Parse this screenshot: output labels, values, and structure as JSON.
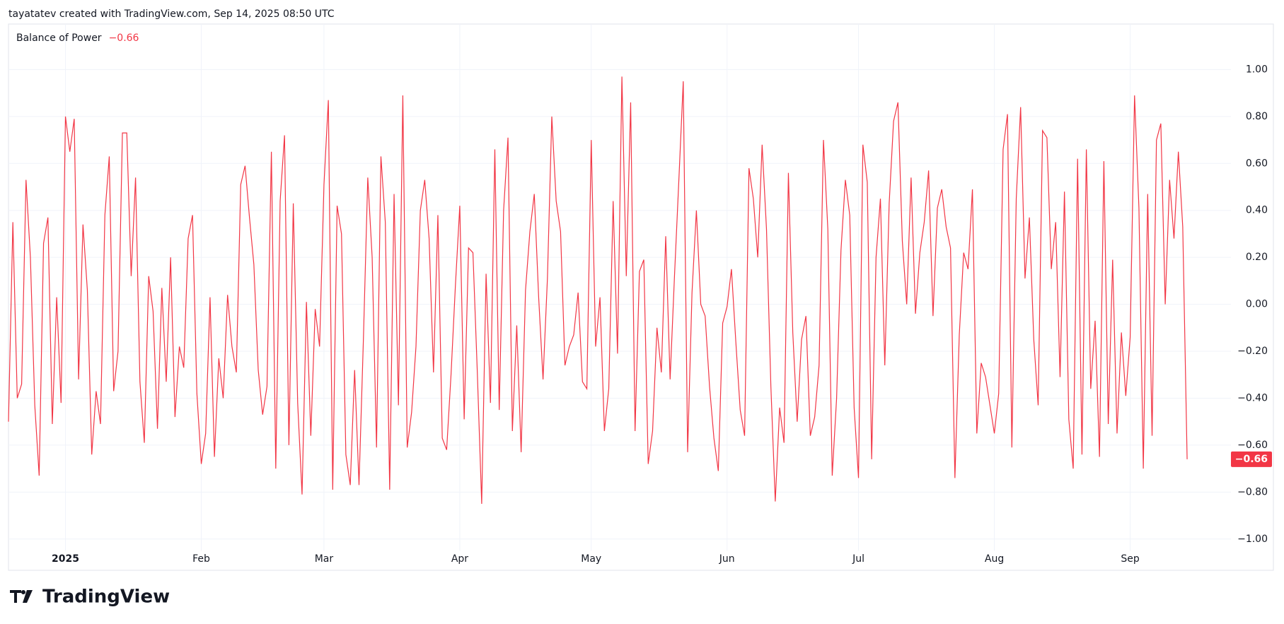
{
  "header": "tayatatev created with TradingView.com, Sep 14, 2025 08:50 UTC",
  "logo": "TradingView",
  "chart_data": {
    "type": "line",
    "title": "Balance of Power",
    "last_value_label": "−0.66",
    "color": "#f23645",
    "grid": true,
    "values": [
      -0.5,
      0.35,
      -0.4,
      -0.34,
      0.53,
      0.2,
      -0.43,
      -0.73,
      0.26,
      0.37,
      -0.51,
      0.03,
      -0.42,
      0.8,
      0.65,
      0.79,
      -0.32,
      0.34,
      0.06,
      -0.64,
      -0.37,
      -0.51,
      0.38,
      0.63,
      -0.37,
      -0.2,
      0.73,
      0.73,
      0.12,
      0.54,
      -0.33,
      -0.59,
      0.12,
      -0.03,
      -0.53,
      0.07,
      -0.33,
      0.2,
      -0.48,
      -0.18,
      -0.27,
      0.28,
      0.38,
      -0.38,
      -0.68,
      -0.55,
      0.03,
      -0.65,
      -0.23,
      -0.4,
      0.04,
      -0.18,
      -0.29,
      0.51,
      0.59,
      0.37,
      0.17,
      -0.28,
      -0.47,
      -0.35,
      0.65,
      -0.7,
      0.44,
      0.72,
      -0.6,
      0.43,
      -0.42,
      -0.81,
      0.01,
      -0.56,
      -0.02,
      -0.18,
      0.51,
      0.87,
      -0.79,
      0.42,
      0.3,
      -0.64,
      -0.77,
      -0.28,
      -0.77,
      -0.15,
      0.54,
      0.2,
      -0.61,
      0.63,
      0.35,
      -0.79,
      0.47,
      -0.43,
      0.89,
      -0.61,
      -0.46,
      -0.18,
      0.4,
      0.53,
      0.28,
      -0.29,
      0.38,
      -0.57,
      -0.62,
      -0.3,
      0.08,
      0.42,
      -0.49,
      0.24,
      0.22,
      -0.29,
      -0.85,
      0.13,
      -0.42,
      0.66,
      -0.45,
      0.4,
      0.71,
      -0.54,
      -0.09,
      -0.63,
      0.06,
      0.31,
      0.47,
      0.03,
      -0.32,
      0.11,
      0.8,
      0.44,
      0.31,
      -0.26,
      -0.18,
      -0.13,
      0.05,
      -0.33,
      -0.36,
      0.7,
      -0.18,
      0.03,
      -0.54,
      -0.36,
      0.44,
      -0.21,
      0.97,
      0.12,
      0.86,
      -0.54,
      0.14,
      0.19,
      -0.68,
      -0.54,
      -0.1,
      -0.29,
      0.29,
      -0.32,
      0.12,
      0.53,
      0.95,
      -0.63,
      0.05,
      0.4,
      0.0,
      -0.05,
      -0.35,
      -0.57,
      -0.71,
      -0.08,
      -0.01,
      0.15,
      -0.16,
      -0.45,
      -0.56,
      0.58,
      0.45,
      0.2,
      0.68,
      0.32,
      -0.35,
      -0.84,
      -0.44,
      -0.59,
      0.56,
      -0.12,
      -0.5,
      -0.15,
      -0.05,
      -0.56,
      -0.48,
      -0.26,
      0.7,
      0.32,
      -0.73,
      -0.4,
      0.23,
      0.53,
      0.38,
      -0.44,
      -0.74,
      0.68,
      0.52,
      -0.66,
      0.2,
      0.45,
      -0.26,
      0.43,
      0.78,
      0.86,
      0.27,
      0.0,
      0.54,
      -0.04,
      0.22,
      0.35,
      0.57,
      -0.05,
      0.41,
      0.49,
      0.33,
      0.24,
      -0.74,
      -0.13,
      0.22,
      0.15,
      0.49,
      -0.55,
      -0.25,
      -0.31,
      -0.43,
      -0.55,
      -0.38,
      0.66,
      0.81,
      -0.61,
      0.45,
      0.84,
      0.11,
      0.37,
      -0.15,
      -0.43,
      0.74,
      0.71,
      0.15,
      0.35,
      -0.31,
      0.48,
      -0.49,
      -0.7,
      0.62,
      -0.64,
      0.66,
      -0.36,
      -0.07,
      -0.65,
      0.61,
      -0.51,
      0.19,
      -0.55,
      -0.12,
      -0.39,
      -0.14,
      0.89,
      0.41,
      -0.7,
      0.47,
      -0.56,
      0.7,
      0.77,
      0.0,
      0.53,
      0.28,
      0.65,
      0.33,
      -0.66
    ],
    "xlim": [
      0,
      279
    ],
    "xticks": [
      {
        "value": 13,
        "label": "2025"
      },
      {
        "value": 44,
        "label": "Feb"
      },
      {
        "value": 72,
        "label": "Mar"
      },
      {
        "value": 103,
        "label": "Apr"
      },
      {
        "value": 133,
        "label": "May"
      },
      {
        "value": 164,
        "label": "Jun"
      },
      {
        "value": 194,
        "label": "Jul"
      },
      {
        "value": 225,
        "label": "Aug"
      },
      {
        "value": 256,
        "label": "Sep"
      }
    ],
    "ylim": [
      -1.05,
      1.2
    ],
    "yticks": [
      {
        "value": 1,
        "label": "1.00"
      },
      {
        "value": 0.8,
        "label": "0.80"
      },
      {
        "value": 0.6,
        "label": "0.60"
      },
      {
        "value": 0.4,
        "label": "0.40"
      },
      {
        "value": 0.2,
        "label": "0.20"
      },
      {
        "value": 0,
        "label": "0.00"
      },
      {
        "value": -0.2,
        "label": "−0.20"
      },
      {
        "value": -0.4,
        "label": "−0.40"
      },
      {
        "value": -0.6,
        "label": "−0.60"
      },
      {
        "value": -0.8,
        "label": "−0.80"
      },
      {
        "value": -1,
        "label": "−1.00"
      }
    ]
  }
}
